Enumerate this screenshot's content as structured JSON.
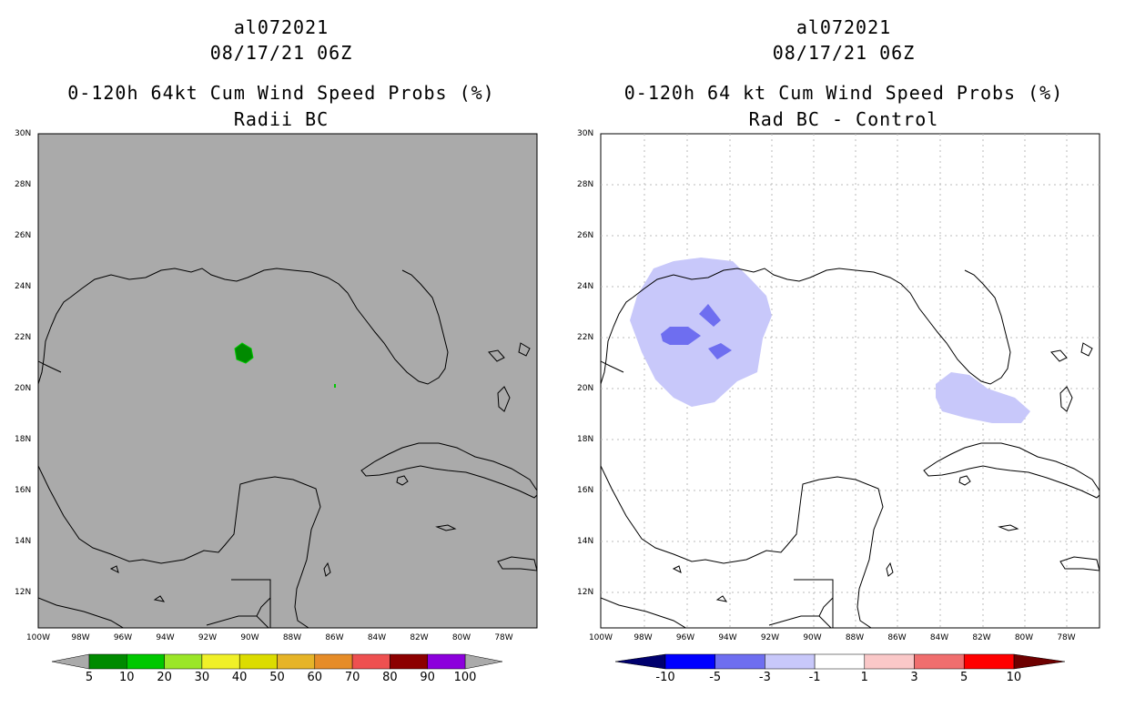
{
  "left_panel": {
    "storm_id": "al072021",
    "datetime": "08/17/21 06Z",
    "title": "0-120h 64kt Cum Wind Speed Probs (%)",
    "subtitle": "Radii BC",
    "background_color": "#aaaaaa",
    "colorbar": {
      "labels": [
        "5",
        "10",
        "20",
        "30",
        "40",
        "50",
        "60",
        "70",
        "80",
        "90",
        "100"
      ],
      "colors": [
        "#008a00",
        "#00c800",
        "#9be628",
        "#f0f028",
        "#dcdc00",
        "#e6b428",
        "#e68c28",
        "#ee5050",
        "#8c0000",
        "#8c00dc"
      ]
    }
  },
  "right_panel": {
    "storm_id": "al072021",
    "datetime": "08/17/21 06Z",
    "title": "0-120h 64 kt Cum Wind Speed Probs (%)",
    "subtitle": "Rad BC - Control",
    "background_color": "#ffffff",
    "colorbar": {
      "labels": [
        "-10",
        "-5",
        "-3",
        "-1",
        "1",
        "3",
        "5",
        "10"
      ],
      "colors": [
        "#0000c8",
        "#0000ff",
        "#6e6ef0",
        "#c8c8fa",
        "#ffffff",
        "#fac8c8",
        "#f06e6e",
        "#ff0000"
      ]
    }
  },
  "axes": {
    "lat_labels": [
      "30N",
      "28N",
      "26N",
      "24N",
      "22N",
      "20N",
      "18N",
      "16N",
      "14N",
      "12N"
    ],
    "lon_labels": [
      "100W",
      "98W",
      "96W",
      "94W",
      "92W",
      "90W",
      "88W",
      "86W",
      "84W",
      "82W",
      "80W",
      "78W"
    ]
  }
}
